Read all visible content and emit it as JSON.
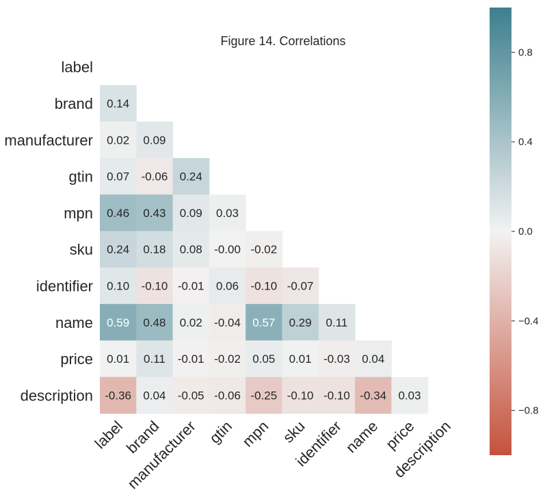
{
  "chart_data": {
    "type": "heatmap",
    "title": "Figure 14. Correlations",
    "variables": [
      "label",
      "brand",
      "manufacturer",
      "gtin",
      "mpn",
      "sku",
      "identifier",
      "name",
      "price",
      "description"
    ],
    "matrix": [
      [
        null,
        null,
        null,
        null,
        null,
        null,
        null,
        null,
        null,
        null
      ],
      [
        "0.14",
        null,
        null,
        null,
        null,
        null,
        null,
        null,
        null,
        null
      ],
      [
        "0.02",
        "0.09",
        null,
        null,
        null,
        null,
        null,
        null,
        null,
        null
      ],
      [
        "0.07",
        "-0.06",
        "0.24",
        null,
        null,
        null,
        null,
        null,
        null,
        null
      ],
      [
        "0.46",
        "0.43",
        "0.09",
        "0.03",
        null,
        null,
        null,
        null,
        null,
        null
      ],
      [
        "0.24",
        "0.18",
        "0.08",
        "-0.00",
        "-0.02",
        null,
        null,
        null,
        null,
        null
      ],
      [
        "0.10",
        "-0.10",
        "-0.01",
        "0.06",
        "-0.10",
        "-0.07",
        null,
        null,
        null,
        null
      ],
      [
        "0.59",
        "0.48",
        "0.02",
        "-0.04",
        "0.57",
        "0.29",
        "0.11",
        null,
        null,
        null
      ],
      [
        "0.01",
        "0.11",
        "-0.01",
        "-0.02",
        "0.05",
        "0.01",
        "-0.03",
        "0.04",
        null,
        null
      ],
      [
        "-0.36",
        "0.04",
        "-0.05",
        "-0.06",
        "-0.25",
        "-0.10",
        "-0.10",
        "-0.34",
        "0.03",
        null
      ]
    ],
    "mask": "upper triangle",
    "colorbar": {
      "range": [
        -1,
        1
      ],
      "ticks": [
        0.8,
        0.4,
        0.0,
        -0.4,
        -0.8
      ],
      "tick_labels": [
        "0.8",
        "0.4",
        "0.0",
        "−0.4",
        "−0.8"
      ],
      "low_color": "#c4523c",
      "mid_color": "#f2f2f2",
      "high_color": "#3d7f8e"
    }
  }
}
